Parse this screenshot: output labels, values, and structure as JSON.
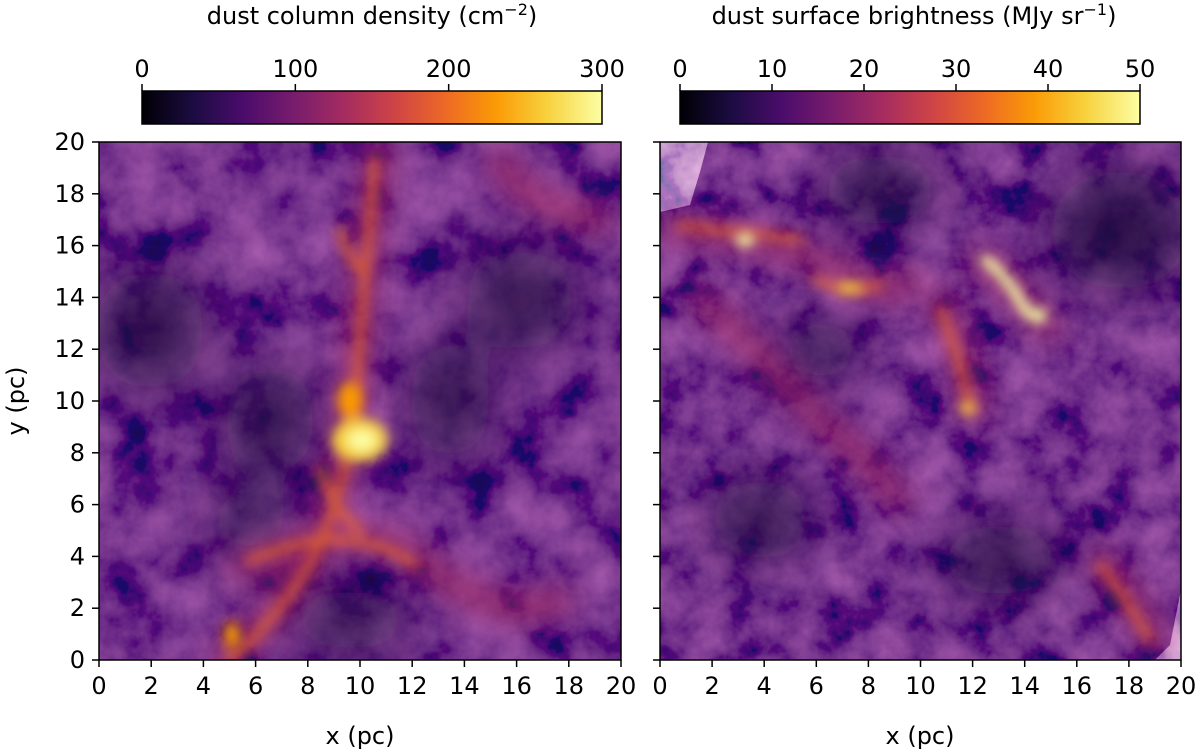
{
  "figure": {
    "left_panel": {
      "colorbar_label": "dust column density (cm",
      "colorbar_label_exp": "−2",
      "colorbar_label_tail": ")",
      "colorbar_ticks": [
        "0",
        "100",
        "200",
        "300"
      ],
      "colorbar_range": [
        0,
        300
      ],
      "x_label": "x (pc)",
      "y_label": "y (pc)",
      "x_ticks": [
        "0",
        "2",
        "4",
        "6",
        "8",
        "10",
        "12",
        "14",
        "16",
        "18",
        "20"
      ],
      "y_ticks": [
        "0",
        "2",
        "4",
        "6",
        "8",
        "10",
        "12",
        "14",
        "16",
        "18",
        "20"
      ],
      "axis_range": [
        0,
        20
      ],
      "colormap": "inferno"
    },
    "right_panel": {
      "colorbar_label": "dust surface brightness (MJy sr",
      "colorbar_label_exp": "−1",
      "colorbar_label_tail": ")",
      "colorbar_ticks": [
        "0",
        "10",
        "20",
        "30",
        "40",
        "50"
      ],
      "colorbar_range": [
        0,
        50
      ],
      "x_label": "x (pc)",
      "x_ticks": [
        "0",
        "2",
        "4",
        "6",
        "8",
        "10",
        "12",
        "14",
        "16",
        "18",
        "20"
      ],
      "axis_range": [
        0,
        20
      ],
      "colormap": "inferno"
    },
    "colors": {
      "cmap_stops": [
        "#000004",
        "#1b0c41",
        "#4a0c6b",
        "#781c6d",
        "#a52c60",
        "#cf4446",
        "#ed6925",
        "#fb9b06",
        "#f7d13d",
        "#fcffa4"
      ],
      "image_base": "#3d1466",
      "image_dark": "#260a4a"
    }
  }
}
